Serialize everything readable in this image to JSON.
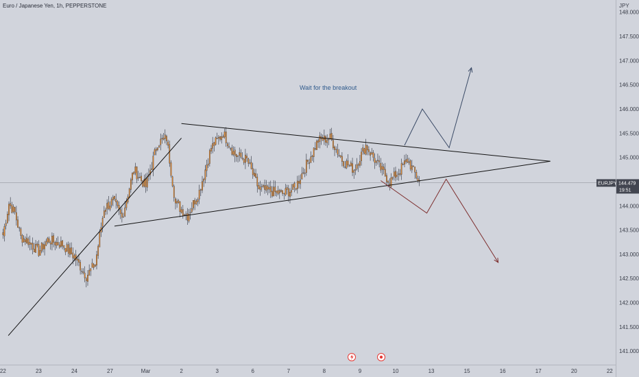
{
  "header": {
    "title": "Euro / Japanese Yen, 1h, PEPPERSTONE"
  },
  "chart_data": {
    "type": "candlestick",
    "currency_label": "JPY",
    "y_ticks": [
      "148.000",
      "147.500",
      "147.000",
      "146.500",
      "146.000",
      "145.500",
      "145.000",
      "144.500",
      "144.000",
      "143.500",
      "143.000",
      "142.500",
      "142.000",
      "141.500",
      "141.000"
    ],
    "y_tick_values": [
      148.0,
      147.5,
      147.0,
      146.5,
      146.0,
      145.5,
      145.0,
      144.5,
      144.0,
      143.5,
      143.0,
      142.5,
      142.0,
      141.5,
      141.0
    ],
    "ylim": [
      140.72,
      148.25
    ],
    "x_ticks": [
      "22",
      "23",
      "24",
      "27",
      "Mar",
      "2",
      "3",
      "6",
      "7",
      "8",
      "9",
      "10",
      "13",
      "15",
      "16",
      "17",
      "20",
      "22"
    ],
    "x_tick_index": [
      0,
      24,
      48,
      72,
      96,
      120,
      144,
      168,
      192,
      216,
      240,
      264,
      288,
      312,
      336,
      360,
      384,
      408
    ],
    "xlim_index": [
      -2,
      412
    ],
    "price_badge": {
      "symbol": "EURJPY",
      "price": "144.479",
      "countdown": "19:51",
      "value": 144.479
    },
    "annotation": {
      "text": "Wait for the breakout"
    },
    "candle_keypoints": [
      [
        0,
        143.4
      ],
      [
        4,
        144.05
      ],
      [
        8,
        143.85
      ],
      [
        12,
        143.35
      ],
      [
        16,
        143.3
      ],
      [
        24,
        143.05
      ],
      [
        30,
        143.3
      ],
      [
        40,
        143.2
      ],
      [
        48,
        142.95
      ],
      [
        56,
        142.55
      ],
      [
        62,
        142.8
      ],
      [
        68,
        143.95
      ],
      [
        74,
        144.1
      ],
      [
        80,
        143.75
      ],
      [
        88,
        144.75
      ],
      [
        96,
        144.4
      ],
      [
        104,
        145.3
      ],
      [
        110,
        145.4
      ],
      [
        116,
        144.05
      ],
      [
        124,
        143.8
      ],
      [
        132,
        144.3
      ],
      [
        140,
        145.2
      ],
      [
        148,
        145.5
      ],
      [
        156,
        145.05
      ],
      [
        164,
        144.95
      ],
      [
        172,
        144.35
      ],
      [
        180,
        144.3
      ],
      [
        188,
        144.25
      ],
      [
        196,
        144.35
      ],
      [
        204,
        144.85
      ],
      [
        212,
        145.35
      ],
      [
        220,
        145.4
      ],
      [
        228,
        144.95
      ],
      [
        236,
        144.75
      ],
      [
        244,
        145.25
      ],
      [
        252,
        144.85
      ],
      [
        260,
        144.5
      ],
      [
        266,
        144.7
      ],
      [
        272,
        144.95
      ],
      [
        280,
        144.5
      ]
    ],
    "patterns": {
      "trendline_up": [
        [
          3.6,
          141.32
        ],
        [
          120,
          145.4
        ]
      ],
      "triangle_upper": [
        [
          120,
          145.7
        ],
        [
          368,
          144.92
        ]
      ],
      "triangle_lower": [
        [
          75,
          143.58
        ],
        [
          368,
          144.92
        ]
      ],
      "bull_path": [
        [
          270,
          145.25
        ],
        [
          282,
          146.0
        ],
        [
          300,
          145.2
        ],
        [
          315,
          146.85
        ]
      ],
      "bear_path": [
        [
          254,
          144.52
        ],
        [
          285,
          143.85
        ],
        [
          298,
          144.55
        ],
        [
          333,
          142.83
        ]
      ]
    },
    "colors": {
      "candle": "#ef8a22",
      "outline": "#2a2e39",
      "trendline": "#111111",
      "bull": "#3a4a66",
      "bear": "#7d2e2e",
      "badge": "#434651",
      "annotation": "#2f5a8c"
    }
  }
}
